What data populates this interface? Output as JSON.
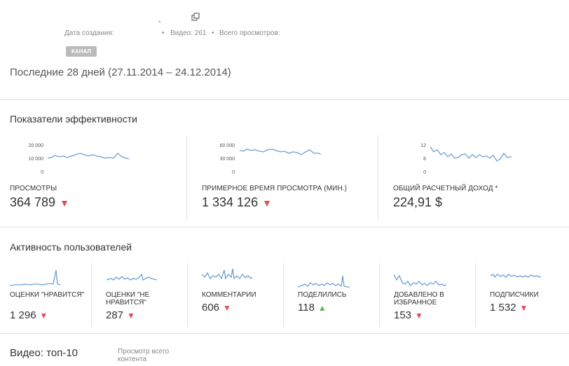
{
  "header": {
    "dash": "-",
    "created_label": "Дата создания:",
    "videos_label": "Видео: 261",
    "views_label": "Всего просмотров:",
    "badge": "КАНАЛ",
    "period": "Последние 28 дней (27.11.2014 – 24.12.2014)"
  },
  "performance": {
    "title": "Показатели эффективности",
    "metrics": [
      {
        "label": "ПРОСМОТРЫ",
        "value": "364 789",
        "trend": "down",
        "ticks": [
          "20 000",
          "10 000",
          "0"
        ]
      },
      {
        "label": "ПРИМЕРНОЕ ВРЕМЯ ПРОСМОТРА (МИН.)",
        "value": "1 334 126",
        "trend": "down",
        "ticks": [
          "60 000",
          "30 000",
          "0"
        ]
      },
      {
        "label": "ОБЩИЙ РАСЧЕТНЫЙ ДОХОД *",
        "value": "224,91 $",
        "trend": "none",
        "ticks": [
          "12",
          "6",
          "0"
        ]
      }
    ]
  },
  "engagement": {
    "title": "Активность пользователей",
    "metrics": [
      {
        "label": "ОЦЕНКИ \"НРАВИТСЯ\"",
        "value": "1 296",
        "trend": "down"
      },
      {
        "label": "ОЦЕНКИ \"НЕ НРАВИТСЯ\"",
        "value": "287",
        "trend": "down"
      },
      {
        "label": "КОММЕНТАРИИ",
        "value": "606",
        "trend": "down"
      },
      {
        "label": "ПОДЕЛИЛИСЬ",
        "value": "118",
        "trend": "up"
      },
      {
        "label": "ДОБАВЛЕНО В ИЗБРАННОЕ",
        "value": "153",
        "trend": "down"
      },
      {
        "label": "ПОДПИСЧИКИ",
        "value": "1 532",
        "trend": "down"
      }
    ]
  },
  "videos": {
    "title": "Видео: топ-10",
    "subtitle": "Просмотр всего контента"
  },
  "icons": {
    "down": "triangle-down-icon",
    "up": "triangle-up-icon",
    "copy": "copy-icon"
  },
  "colors": {
    "line": "#6d9fd6",
    "down": "#d9534f",
    "up": "#5cb85c",
    "badge": "#bbbbbb"
  }
}
